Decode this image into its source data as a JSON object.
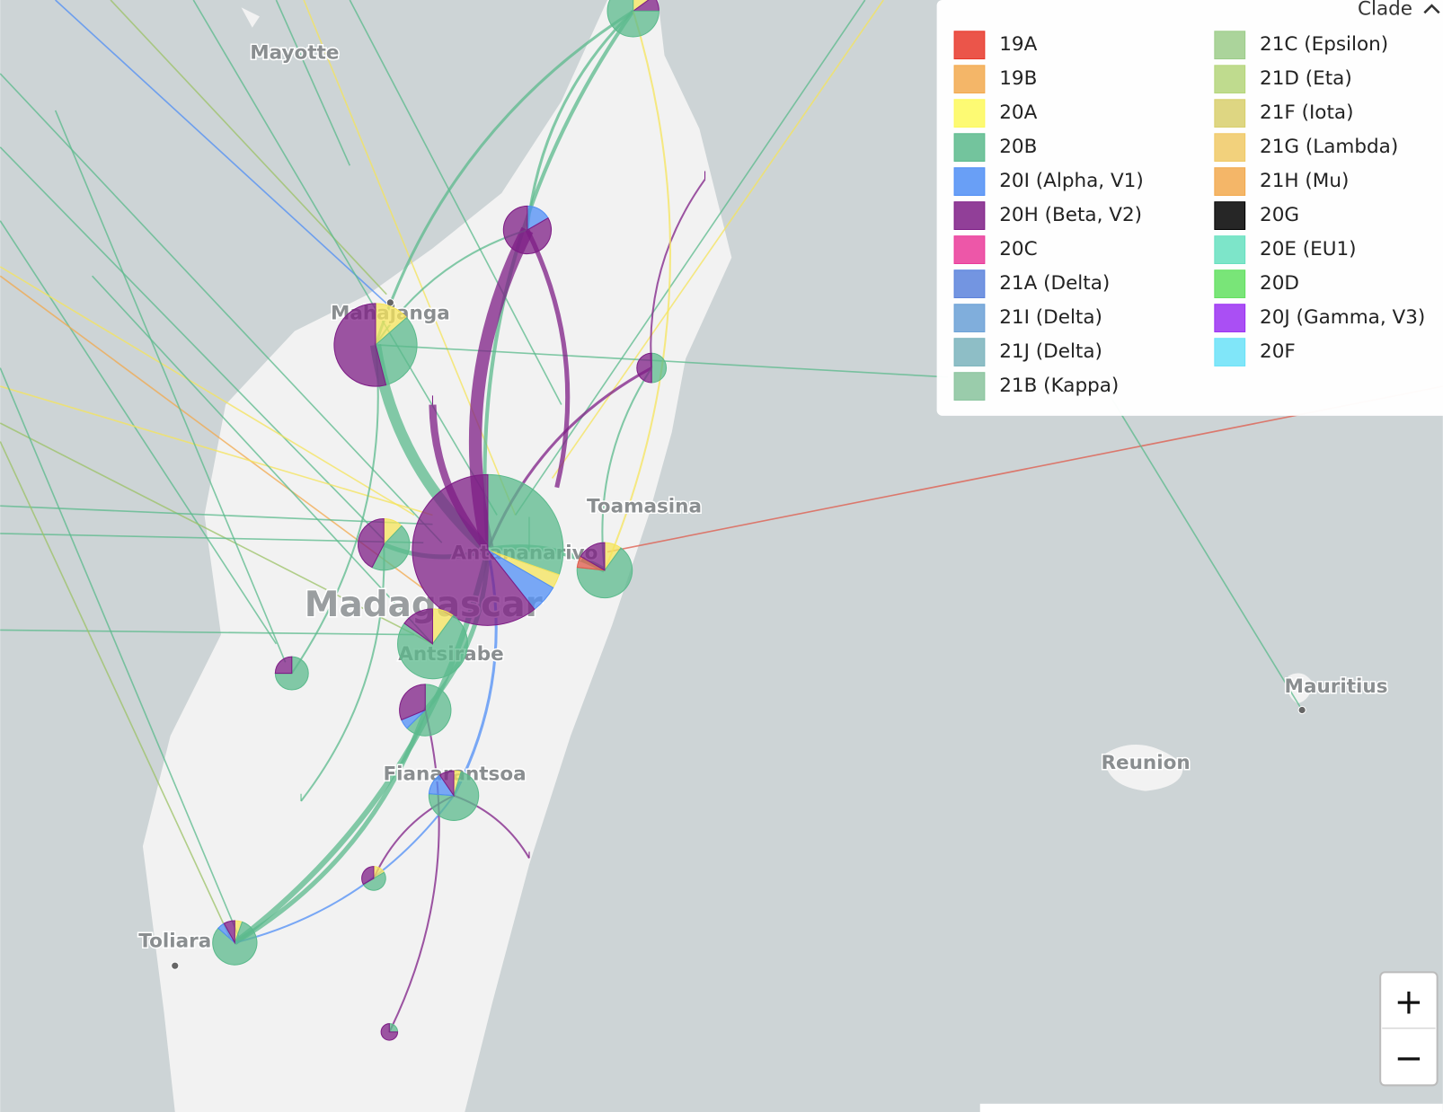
{
  "map": {
    "labels": [
      {
        "text": "Mayotte"
      },
      {
        "text": "Mahajanga"
      },
      {
        "text": "Toamasina"
      },
      {
        "text": "Antananarivo"
      },
      {
        "text": "Madagascar"
      },
      {
        "text": "Antsirabe"
      },
      {
        "text": "Fianarantsoa"
      },
      {
        "text": "Toliara"
      },
      {
        "text": "Mauritius"
      },
      {
        "text": "Reunion"
      }
    ]
  },
  "legend": {
    "title": "Clade",
    "items": [
      {
        "name": "19A",
        "color": "#e8372a"
      },
      {
        "name": "19B",
        "color": "#f2a94d"
      },
      {
        "name": "20A",
        "color": "#fdf95b"
      },
      {
        "name": "20B",
        "color": "#5bba8c"
      },
      {
        "name": "20I (Alpha, V1)",
        "color": "#4f8ef5"
      },
      {
        "name": "20H (Beta, V2)",
        "color": "#7e1d86"
      },
      {
        "name": "20C",
        "color": "#ea3999"
      },
      {
        "name": "21A (Delta)",
        "color": "#5a82dc"
      },
      {
        "name": "21I (Delta)",
        "color": "#6aa0d6"
      },
      {
        "name": "21J (Delta)",
        "color": "#7ab3bc"
      },
      {
        "name": "21B (Kappa)",
        "color": "#88c39c"
      },
      {
        "name": "21C (Epsilon)",
        "color": "#9ccc8a"
      },
      {
        "name": "21D (Eta)",
        "color": "#b4d57a"
      },
      {
        "name": "21F (Iota)",
        "color": "#d8cf6c"
      },
      {
        "name": "21G (Lambda)",
        "color": "#f0c965"
      },
      {
        "name": "21H (Mu)",
        "color": "#f2a94d"
      },
      {
        "name": "20G",
        "color": "#000000"
      },
      {
        "name": "20E (EU1)",
        "color": "#66e0c0"
      },
      {
        "name": "20D",
        "color": "#62e060"
      },
      {
        "name": "20J (Gamma, V3)",
        "color": "#9b30f2"
      },
      {
        "name": "20F",
        "color": "#6ae2f8"
      }
    ]
  },
  "controls": {
    "zoom_in": "+",
    "zoom_out": "−"
  }
}
